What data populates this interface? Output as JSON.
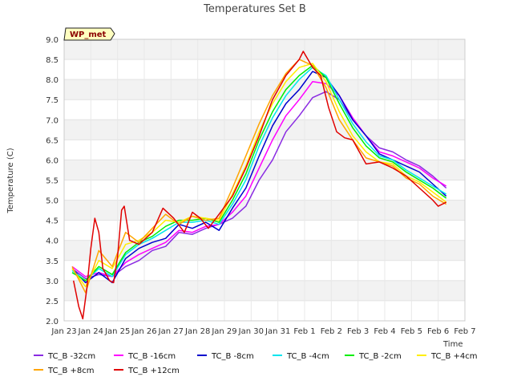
{
  "chart_data": {
    "type": "line",
    "title": "Temperatures Set B",
    "xlabel": "Time",
    "ylabel": "Temperature (C)",
    "annotation": "WP_met",
    "x_ticks": [
      "Jan 23",
      "Jan 24",
      "Jan 25",
      "Jan 26",
      "Jan 27",
      "Jan 28",
      "Jan 29",
      "Jan 30",
      "Jan 31",
      "Feb 1",
      "Feb 2",
      "Feb 3",
      "Feb 4",
      "Feb 5",
      "Feb 6",
      "Feb 7"
    ],
    "y_ticks": [
      "2.0",
      "2.5",
      "3.0",
      "3.5",
      "4.0",
      "4.5",
      "5.0",
      "5.5",
      "6.0",
      "6.5",
      "7.0",
      "7.5",
      "8.0",
      "8.5",
      "9.0"
    ],
    "xlim": [
      0,
      15
    ],
    "ylim": [
      2.0,
      9.0
    ],
    "grid": true,
    "legend_position": "bottom",
    "x_units": "days since Jan 23",
    "series": [
      {
        "name": "TC_B -32cm",
        "color": "#8a2be2",
        "points": [
          [
            0.3,
            3.3
          ],
          [
            0.8,
            3.05
          ],
          [
            1.3,
            3.15
          ],
          [
            1.8,
            3.1
          ],
          [
            2.3,
            3.35
          ],
          [
            2.8,
            3.5
          ],
          [
            3.3,
            3.75
          ],
          [
            3.8,
            3.85
          ],
          [
            4.3,
            4.2
          ],
          [
            4.8,
            4.15
          ],
          [
            5.3,
            4.3
          ],
          [
            5.8,
            4.4
          ],
          [
            6.3,
            4.55
          ],
          [
            6.8,
            4.85
          ],
          [
            7.3,
            5.5
          ],
          [
            7.8,
            6.0
          ],
          [
            8.3,
            6.7
          ],
          [
            8.8,
            7.1
          ],
          [
            9.3,
            7.55
          ],
          [
            9.8,
            7.7
          ],
          [
            10.3,
            7.5
          ],
          [
            10.8,
            7.0
          ],
          [
            11.3,
            6.6
          ],
          [
            11.8,
            6.3
          ],
          [
            12.3,
            6.2
          ],
          [
            12.8,
            6.0
          ],
          [
            13.3,
            5.85
          ],
          [
            13.8,
            5.6
          ],
          [
            14.3,
            5.3
          ]
        ]
      },
      {
        "name": "TC_B -16cm",
        "color": "#ff00ff",
        "points": [
          [
            0.3,
            3.35
          ],
          [
            0.8,
            3.1
          ],
          [
            1.3,
            3.2
          ],
          [
            1.8,
            3.1
          ],
          [
            2.3,
            3.45
          ],
          [
            2.8,
            3.65
          ],
          [
            3.3,
            3.8
          ],
          [
            3.8,
            3.95
          ],
          [
            4.3,
            4.25
          ],
          [
            4.8,
            4.2
          ],
          [
            5.3,
            4.35
          ],
          [
            5.8,
            4.4
          ],
          [
            6.3,
            4.7
          ],
          [
            6.8,
            5.1
          ],
          [
            7.3,
            5.8
          ],
          [
            7.8,
            6.5
          ],
          [
            8.3,
            7.1
          ],
          [
            8.8,
            7.5
          ],
          [
            9.3,
            7.95
          ],
          [
            9.8,
            7.9
          ],
          [
            10.3,
            7.6
          ],
          [
            10.8,
            7.05
          ],
          [
            11.3,
            6.6
          ],
          [
            11.8,
            6.2
          ],
          [
            12.3,
            6.1
          ],
          [
            12.8,
            5.95
          ],
          [
            13.3,
            5.8
          ],
          [
            13.8,
            5.55
          ],
          [
            14.3,
            5.35
          ]
        ]
      },
      {
        "name": "TC_B -8cm",
        "color": "#0000cd",
        "points": [
          [
            0.3,
            3.3
          ],
          [
            0.8,
            2.95
          ],
          [
            1.3,
            3.2
          ],
          [
            1.8,
            2.95
          ],
          [
            2.3,
            3.55
          ],
          [
            2.8,
            3.8
          ],
          [
            3.3,
            3.95
          ],
          [
            3.8,
            4.05
          ],
          [
            4.3,
            4.4
          ],
          [
            4.8,
            4.3
          ],
          [
            5.3,
            4.45
          ],
          [
            5.8,
            4.25
          ],
          [
            6.3,
            4.8
          ],
          [
            6.8,
            5.3
          ],
          [
            7.3,
            6.1
          ],
          [
            7.8,
            6.85
          ],
          [
            8.3,
            7.4
          ],
          [
            8.8,
            7.75
          ],
          [
            9.3,
            8.2
          ],
          [
            9.8,
            8.05
          ],
          [
            10.3,
            7.6
          ],
          [
            10.8,
            7.0
          ],
          [
            11.3,
            6.6
          ],
          [
            11.8,
            6.15
          ],
          [
            12.3,
            6.0
          ],
          [
            12.8,
            5.85
          ],
          [
            13.3,
            5.7
          ],
          [
            13.8,
            5.4
          ],
          [
            14.3,
            5.1
          ]
        ]
      },
      {
        "name": "TC_B -4cm",
        "color": "#00e5ee",
        "points": [
          [
            0.3,
            3.25
          ],
          [
            0.8,
            3.0
          ],
          [
            1.3,
            3.3
          ],
          [
            1.8,
            3.1
          ],
          [
            2.3,
            3.65
          ],
          [
            2.8,
            3.9
          ],
          [
            3.3,
            4.05
          ],
          [
            3.8,
            4.25
          ],
          [
            4.3,
            4.45
          ],
          [
            4.8,
            4.45
          ],
          [
            5.3,
            4.5
          ],
          [
            5.8,
            4.4
          ],
          [
            6.3,
            4.9
          ],
          [
            6.8,
            5.5
          ],
          [
            7.3,
            6.35
          ],
          [
            7.8,
            7.05
          ],
          [
            8.3,
            7.6
          ],
          [
            8.8,
            8.0
          ],
          [
            9.3,
            8.3
          ],
          [
            9.8,
            8.1
          ],
          [
            10.3,
            7.5
          ],
          [
            10.8,
            6.9
          ],
          [
            11.3,
            6.45
          ],
          [
            11.8,
            6.1
          ],
          [
            12.3,
            6.0
          ],
          [
            12.8,
            5.75
          ],
          [
            13.3,
            5.55
          ],
          [
            13.8,
            5.35
          ],
          [
            14.3,
            5.15
          ]
        ]
      },
      {
        "name": "TC_B -2cm",
        "color": "#00ee00",
        "points": [
          [
            0.3,
            3.2
          ],
          [
            0.8,
            3.0
          ],
          [
            1.3,
            3.35
          ],
          [
            1.8,
            3.15
          ],
          [
            2.3,
            3.7
          ],
          [
            2.8,
            3.95
          ],
          [
            3.3,
            4.1
          ],
          [
            3.8,
            4.35
          ],
          [
            4.3,
            4.5
          ],
          [
            4.8,
            4.5
          ],
          [
            5.3,
            4.55
          ],
          [
            5.8,
            4.45
          ],
          [
            6.3,
            5.0
          ],
          [
            6.8,
            5.65
          ],
          [
            7.3,
            6.5
          ],
          [
            7.8,
            7.2
          ],
          [
            8.3,
            7.75
          ],
          [
            8.8,
            8.1
          ],
          [
            9.3,
            8.35
          ],
          [
            9.8,
            8.05
          ],
          [
            10.3,
            7.4
          ],
          [
            10.8,
            6.8
          ],
          [
            11.3,
            6.35
          ],
          [
            11.8,
            6.05
          ],
          [
            12.3,
            5.95
          ],
          [
            12.8,
            5.7
          ],
          [
            13.3,
            5.5
          ],
          [
            13.8,
            5.3
          ],
          [
            14.3,
            5.05
          ]
        ]
      },
      {
        "name": "TC_B +4cm",
        "color": "#ffee00",
        "points": [
          [
            0.3,
            3.3
          ],
          [
            0.8,
            2.85
          ],
          [
            1.3,
            3.5
          ],
          [
            1.8,
            3.3
          ],
          [
            2.3,
            3.9
          ],
          [
            2.8,
            4.0
          ],
          [
            3.3,
            4.2
          ],
          [
            3.8,
            4.5
          ],
          [
            4.3,
            4.45
          ],
          [
            4.8,
            4.6
          ],
          [
            5.3,
            4.55
          ],
          [
            5.8,
            4.5
          ],
          [
            6.3,
            5.15
          ],
          [
            6.8,
            5.85
          ],
          [
            7.3,
            6.7
          ],
          [
            7.8,
            7.4
          ],
          [
            8.3,
            7.95
          ],
          [
            8.8,
            8.3
          ],
          [
            9.3,
            8.4
          ],
          [
            9.8,
            7.95
          ],
          [
            10.3,
            7.2
          ],
          [
            10.8,
            6.6
          ],
          [
            11.3,
            6.2
          ],
          [
            11.8,
            5.95
          ],
          [
            12.3,
            5.9
          ],
          [
            12.8,
            5.6
          ],
          [
            13.3,
            5.45
          ],
          [
            13.8,
            5.2
          ],
          [
            14.3,
            4.95
          ]
        ]
      },
      {
        "name": "TC_B +8cm",
        "color": "#ffa500",
        "points": [
          [
            0.3,
            3.35
          ],
          [
            0.8,
            2.7
          ],
          [
            1.3,
            3.75
          ],
          [
            1.8,
            3.35
          ],
          [
            2.3,
            4.2
          ],
          [
            2.8,
            3.95
          ],
          [
            3.3,
            4.3
          ],
          [
            3.8,
            4.65
          ],
          [
            4.3,
            4.4
          ],
          [
            4.8,
            4.6
          ],
          [
            5.3,
            4.5
          ],
          [
            5.8,
            4.55
          ],
          [
            6.3,
            5.3
          ],
          [
            6.8,
            6.1
          ],
          [
            7.3,
            6.9
          ],
          [
            7.8,
            7.6
          ],
          [
            8.3,
            8.15
          ],
          [
            8.8,
            8.5
          ],
          [
            9.3,
            8.35
          ],
          [
            9.8,
            7.8
          ],
          [
            10.3,
            7.0
          ],
          [
            10.8,
            6.5
          ],
          [
            11.3,
            6.05
          ],
          [
            11.8,
            5.95
          ],
          [
            12.3,
            5.85
          ],
          [
            12.8,
            5.55
          ],
          [
            13.3,
            5.4
          ],
          [
            13.8,
            5.1
          ],
          [
            14.3,
            4.9
          ]
        ]
      },
      {
        "name": "TC_B +12cm",
        "color": "#e00000",
        "points": [
          [
            0.35,
            3.0
          ],
          [
            0.55,
            2.35
          ],
          [
            0.7,
            2.05
          ],
          [
            0.85,
            2.8
          ],
          [
            1.0,
            3.8
          ],
          [
            1.15,
            4.55
          ],
          [
            1.3,
            4.2
          ],
          [
            1.45,
            3.3
          ],
          [
            1.7,
            3.0
          ],
          [
            1.85,
            2.95
          ],
          [
            2.0,
            3.6
          ],
          [
            2.15,
            4.75
          ],
          [
            2.25,
            4.85
          ],
          [
            2.45,
            4.0
          ],
          [
            2.8,
            3.9
          ],
          [
            3.3,
            4.2
          ],
          [
            3.7,
            4.8
          ],
          [
            4.1,
            4.55
          ],
          [
            4.5,
            4.2
          ],
          [
            4.8,
            4.7
          ],
          [
            5.1,
            4.55
          ],
          [
            5.4,
            4.3
          ],
          [
            5.8,
            4.65
          ],
          [
            6.3,
            5.1
          ],
          [
            6.8,
            5.8
          ],
          [
            7.3,
            6.6
          ],
          [
            7.8,
            7.5
          ],
          [
            8.3,
            8.1
          ],
          [
            8.8,
            8.5
          ],
          [
            8.95,
            8.7
          ],
          [
            9.3,
            8.3
          ],
          [
            9.6,
            8.1
          ],
          [
            9.9,
            7.3
          ],
          [
            10.2,
            6.7
          ],
          [
            10.5,
            6.55
          ],
          [
            10.8,
            6.5
          ],
          [
            11.3,
            5.9
          ],
          [
            11.8,
            5.95
          ],
          [
            12.3,
            5.8
          ],
          [
            12.8,
            5.6
          ],
          [
            13.3,
            5.3
          ],
          [
            13.8,
            5.0
          ],
          [
            14.0,
            4.85
          ],
          [
            14.3,
            4.95
          ]
        ]
      }
    ]
  }
}
